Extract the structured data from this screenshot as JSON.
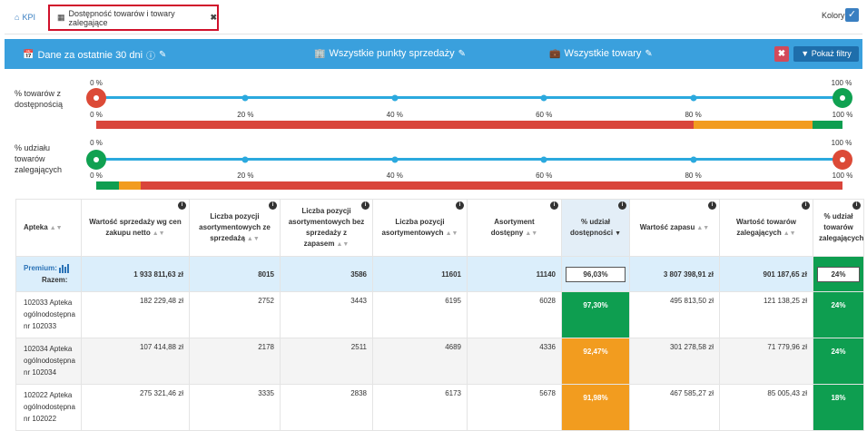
{
  "tabs": {
    "kpi_label": "KPI",
    "active_label": "Dostępność towarów i towary zalegające"
  },
  "kolory_label": "Kolory",
  "filters": {
    "period": "Dane za ostatnie 30 dni",
    "points": "Wszystkie punkty sprzedaży",
    "products": "Wszystkie towary",
    "show_button": "Pokaż filtry"
  },
  "sliders": [
    {
      "label": "% towarów z dostępnością",
      "min_label": "0 %",
      "max_label": "100 %",
      "scale": [
        "0 %",
        "20 %",
        "40 %",
        "60 %",
        "80 %",
        "100 %"
      ],
      "segments": [
        {
          "from": 0,
          "to": 80,
          "color": "#d9453b"
        },
        {
          "from": 80,
          "to": 96,
          "color": "#f29c1f"
        },
        {
          "from": 96,
          "to": 100,
          "color": "#0e9e50"
        }
      ]
    },
    {
      "label": "% udziału towarów zalegających",
      "min_label": "0 %",
      "max_label": "100 %",
      "scale": [
        "0 %",
        "20 %",
        "40 %",
        "60 %",
        "80 %",
        "100 %"
      ],
      "segments": [
        {
          "from": 0,
          "to": 3,
          "color": "#0e9e50"
        },
        {
          "from": 3,
          "to": 6,
          "color": "#f29c1f"
        },
        {
          "from": 6,
          "to": 100,
          "color": "#d9453b"
        }
      ]
    }
  ],
  "table": {
    "headers": [
      "Apteka",
      "Wartość sprzedaży wg cen zakupu netto",
      "Liczba pozycji asortymentowych ze sprzedażą",
      "Liczba pozycji asortymentowych bez sprzedaży z zapasem",
      "Liczba pozycji asortymentowych",
      "Asortyment dostępny",
      "% udział dostępności",
      "Wartość zapasu",
      "Wartość towarów zalegających",
      "% udział towarów zalegających"
    ],
    "summary": {
      "premium": "Premium:",
      "razem": "Razem:",
      "values": [
        "1 933 811,63 zł",
        "8015",
        "3586",
        "11601",
        "11140",
        "96,03%",
        "3 807 398,91 zł",
        "901 187,65 zł",
        "24%"
      ]
    },
    "rows": [
      {
        "name": "102033 Apteka ogólnodostępna nr 102033",
        "values": [
          "182 229,48 zł",
          "2752",
          "3443",
          "6195",
          "6028",
          "97,30%",
          "495 813,50 zł",
          "121 138,25 zł",
          "24%"
        ],
        "avail_color": "green",
        "stale_color": "green"
      },
      {
        "name": "102034 Apteka ogólnodostępna nr 102034",
        "values": [
          "107 414,88 zł",
          "2178",
          "2511",
          "4689",
          "4336",
          "92,47%",
          "301 278,58 zł",
          "71 779,96 zł",
          "24%"
        ],
        "avail_color": "orange",
        "stale_color": "green"
      },
      {
        "name": "102022 Apteka ogólnodostępna nr 102022",
        "values": [
          "275 321,46 zł",
          "3335",
          "2838",
          "6173",
          "5678",
          "91,98%",
          "467 585,27 zł",
          "85 005,43 zł",
          "18%"
        ],
        "avail_color": "orange",
        "stale_color": "green"
      }
    ]
  }
}
